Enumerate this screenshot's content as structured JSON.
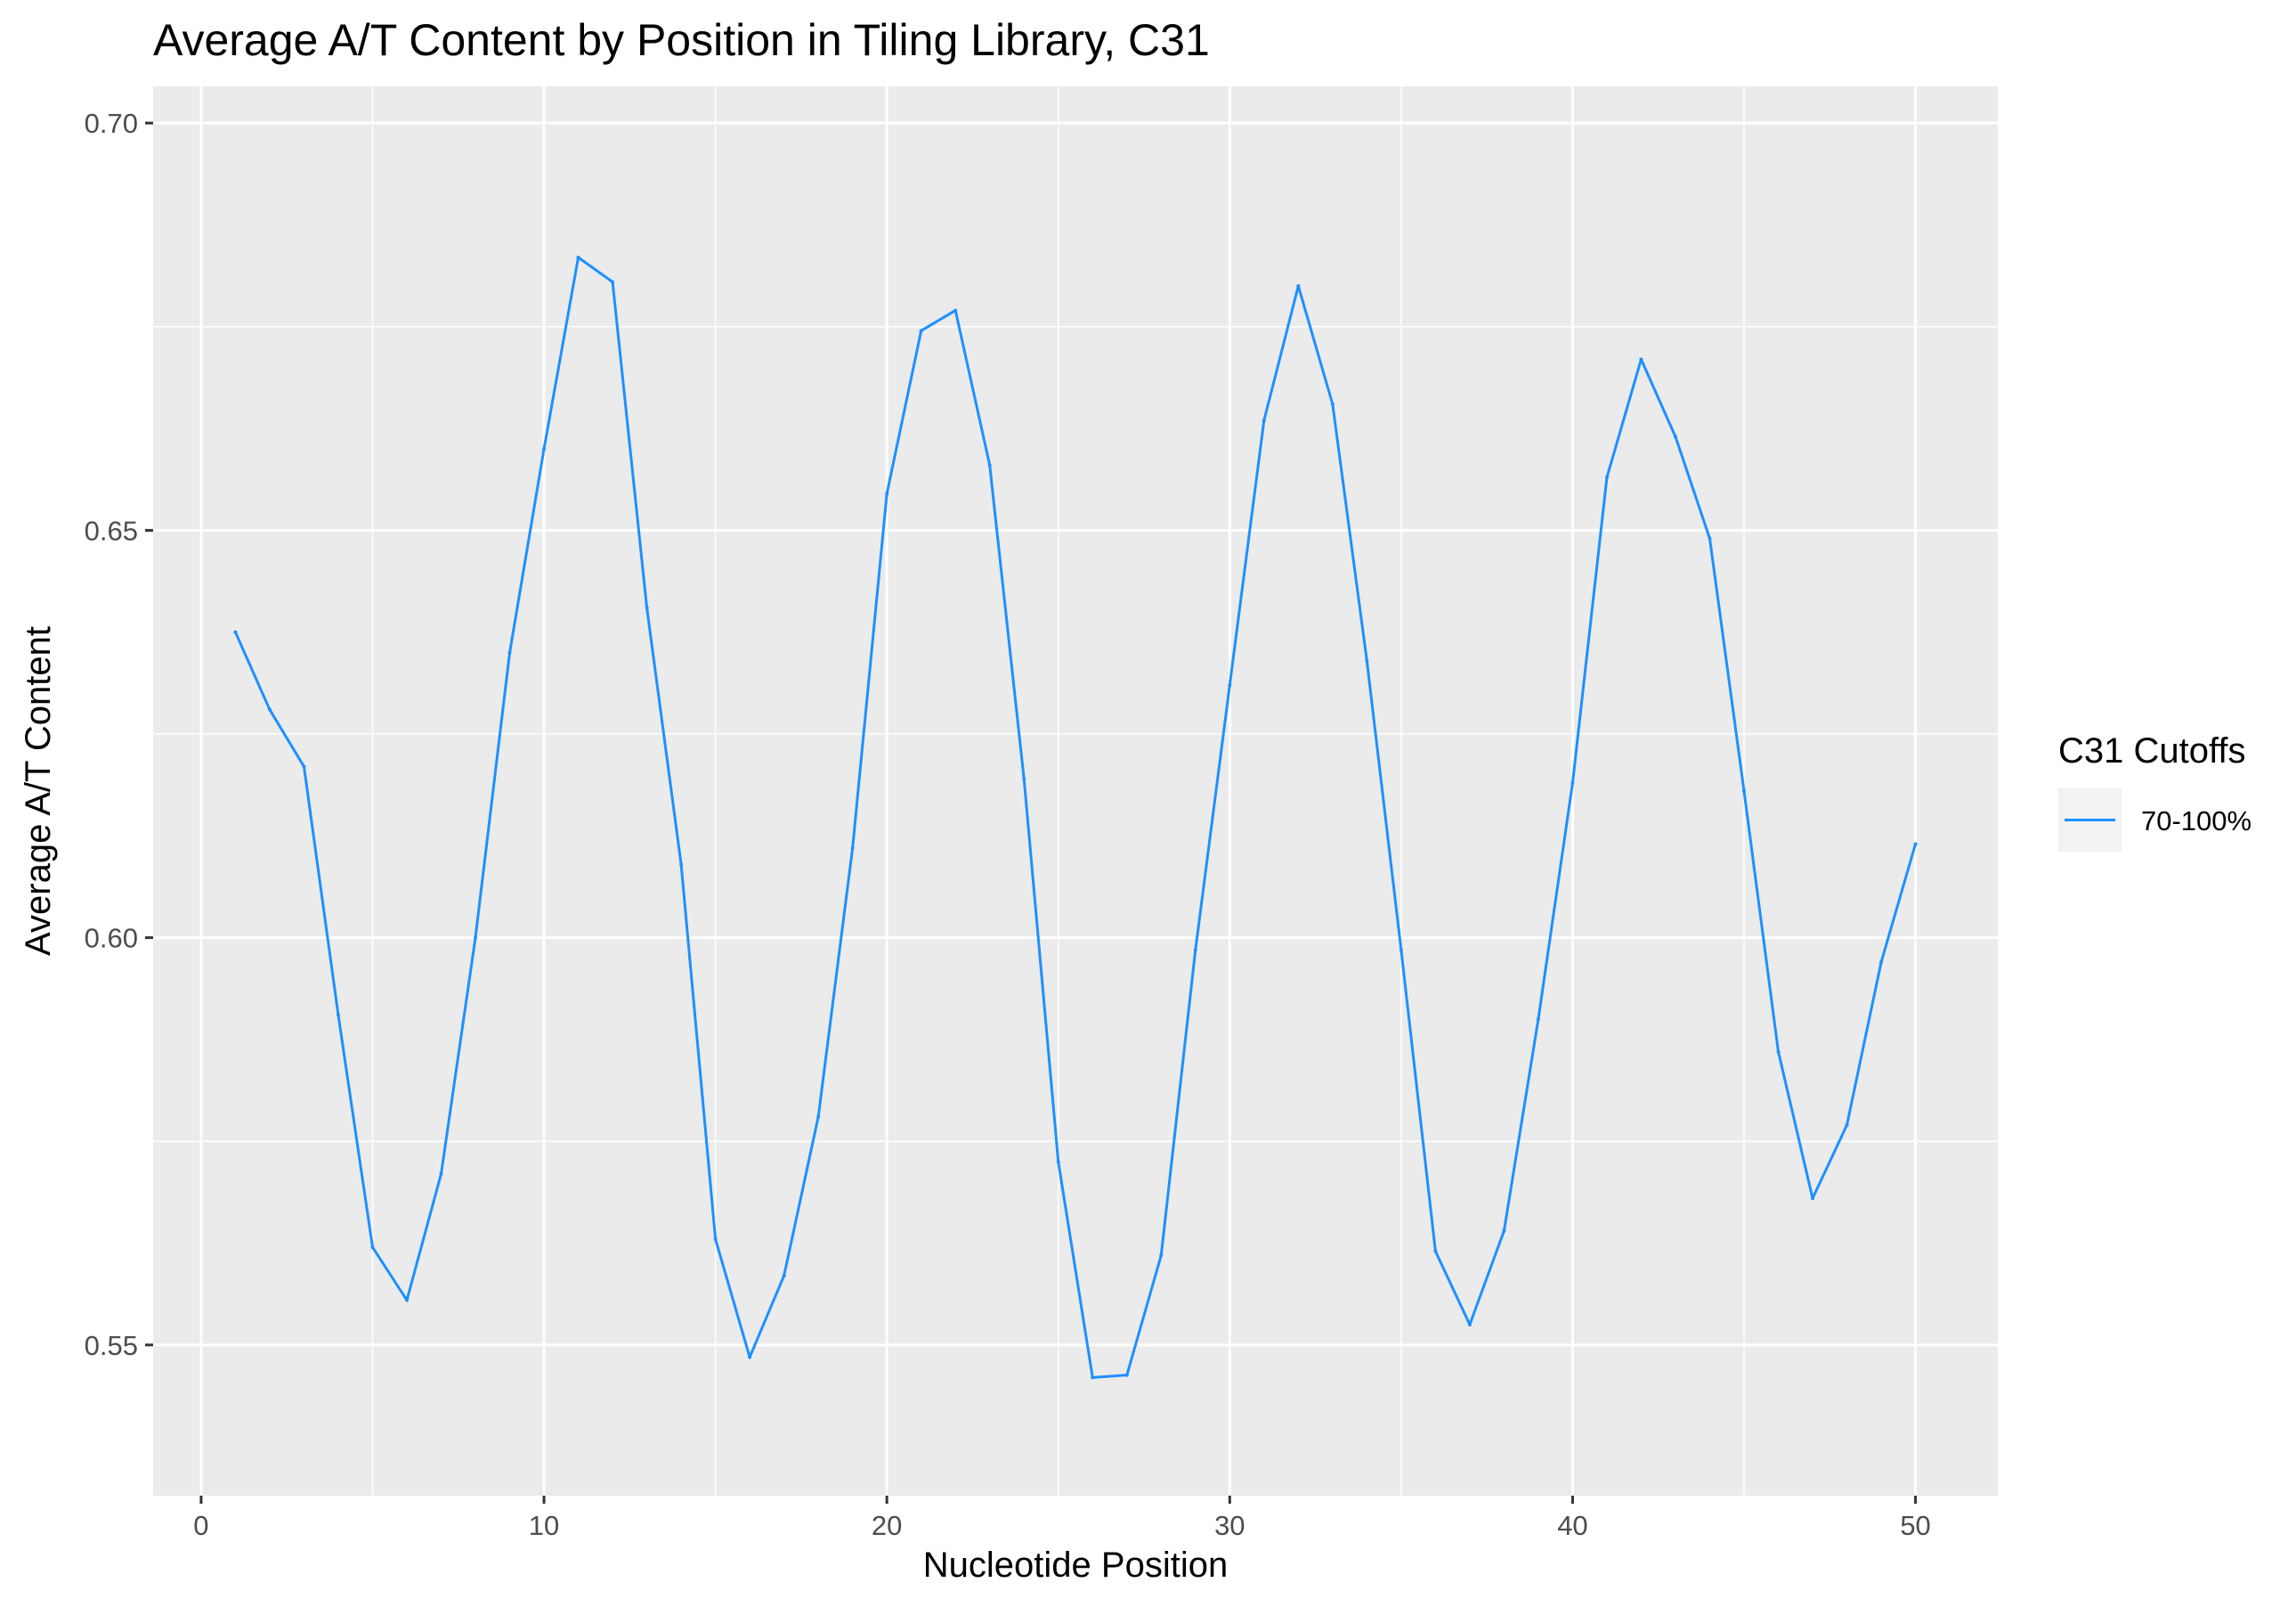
{
  "chart_data": {
    "type": "line",
    "title": "Average A/T Content by Position in Tiling Library, C31",
    "xlabel": "Nucleotide Position",
    "ylabel": "Average A/T Content",
    "xlim": [
      -1.4,
      52.4
    ],
    "ylim": [
      0.5315,
      0.7045
    ],
    "x_ticks": [
      0,
      10,
      20,
      30,
      40,
      50
    ],
    "x_tick_labels": [
      "0",
      "10",
      "20",
      "30",
      "40",
      "50"
    ],
    "y_ticks": [
      0.55,
      0.6,
      0.65,
      0.7
    ],
    "y_tick_labels": [
      "0.55",
      "0.60",
      "0.65",
      "0.70"
    ],
    "grid": true,
    "background": "#ebebeb",
    "legend": {
      "title": "C31 Cutoffs",
      "position": "right",
      "entries": [
        {
          "label": "70-100%",
          "color": "#1e90ff"
        }
      ]
    },
    "series": [
      {
        "name": "70-100%",
        "color": "#1e90ff",
        "x": [
          1,
          2,
          3,
          4,
          5,
          6,
          7,
          8,
          9,
          10,
          11,
          12,
          13,
          14,
          15,
          16,
          17,
          18,
          19,
          20,
          21,
          22,
          23,
          24,
          25,
          26,
          27,
          28,
          29,
          30,
          31,
          32,
          33,
          34,
          35,
          36,
          37,
          38,
          39,
          40,
          41,
          42,
          43,
          44,
          45,
          46,
          47,
          48,
          49,
          50
        ],
        "y": [
          0.6375,
          0.628,
          0.621,
          0.5905,
          0.562,
          0.5555,
          0.571,
          0.6,
          0.635,
          0.66,
          0.6835,
          0.6805,
          0.6405,
          0.609,
          0.563,
          0.5485,
          0.5585,
          0.578,
          0.611,
          0.6545,
          0.6745,
          0.677,
          0.658,
          0.6195,
          0.5725,
          0.546,
          0.5463,
          0.561,
          0.5985,
          0.631,
          0.6635,
          0.68,
          0.6655,
          0.634,
          0.5985,
          0.5615,
          0.5525,
          0.564,
          0.59,
          0.619,
          0.6565,
          0.671,
          0.6615,
          0.649,
          0.618,
          0.586,
          0.568,
          0.577,
          0.597,
          0.6115
        ]
      }
    ]
  }
}
